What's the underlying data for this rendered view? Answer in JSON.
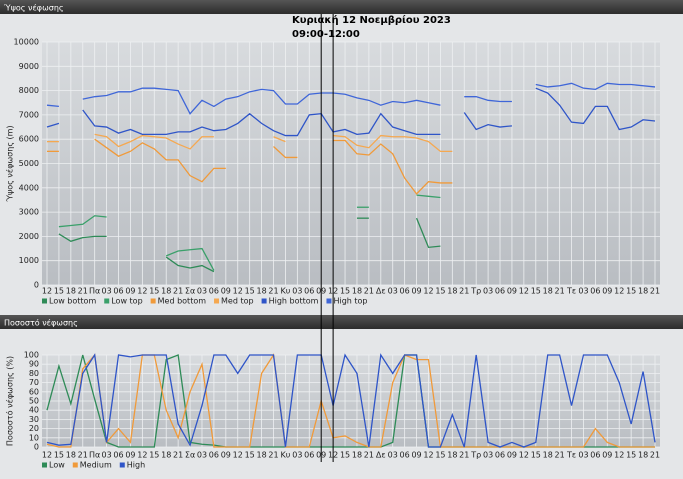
{
  "chart_data": [
    {
      "type": "line",
      "title": "Ύψος νέφωσης",
      "ylabel": "Ύψος νέφωσης (m)",
      "annotation": [
        "Κυριακή 12 Νοεμβρίου 2023",
        "09:00-12:00"
      ],
      "categories": [
        "12",
        "15",
        "18",
        "21",
        "Πα",
        "03",
        "06",
        "09",
        "12",
        "15",
        "18",
        "21",
        "Σα",
        "03",
        "06",
        "09",
        "12",
        "15",
        "18",
        "21",
        "Κυ",
        "03",
        "06",
        "09",
        "12",
        "15",
        "18",
        "21",
        "Δε",
        "03",
        "06",
        "09",
        "12",
        "15",
        "18",
        "21",
        "Τρ",
        "03",
        "06",
        "09",
        "12",
        "15",
        "18",
        "21",
        "Τε",
        "03",
        "06",
        "09",
        "12",
        "15",
        "18",
        "21"
      ],
      "ylim": [
        0,
        10000
      ],
      "yticks": [
        0,
        1000,
        2000,
        3000,
        4000,
        5000,
        6000,
        7000,
        8000,
        9000,
        10000
      ],
      "grid": true,
      "series": [
        {
          "name": "Low bottom",
          "color": "#2e8b57",
          "values": [
            null,
            2100,
            1800,
            1950,
            2000,
            2000,
            null,
            null,
            null,
            null,
            1150,
            800,
            700,
            800,
            550,
            null,
            null,
            null,
            null,
            null,
            null,
            null,
            null,
            null,
            null,
            null,
            2750,
            2750,
            null,
            null,
            null,
            2750,
            1550,
            1600,
            null,
            null,
            null,
            null,
            null,
            null,
            null,
            null,
            null,
            null,
            null,
            null,
            null,
            null,
            null,
            null,
            null,
            null
          ]
        },
        {
          "name": "Low top",
          "color": "#3aa06a",
          "values": [
            null,
            2400,
            2450,
            2500,
            2850,
            2800,
            null,
            null,
            null,
            null,
            1200,
            1400,
            1450,
            1500,
            600,
            null,
            null,
            null,
            null,
            null,
            null,
            null,
            null,
            null,
            null,
            null,
            3200,
            3200,
            null,
            null,
            null,
            3700,
            3650,
            3600,
            null,
            null,
            null,
            null,
            null,
            null,
            null,
            null,
            null,
            null,
            null,
            null,
            null,
            null,
            null,
            null,
            null,
            null
          ]
        },
        {
          "name": "Med bottom",
          "color": "#f09a3a",
          "values": [
            5500,
            5500,
            null,
            null,
            6000,
            5650,
            5300,
            5500,
            5850,
            5600,
            5150,
            5150,
            4500,
            4250,
            4800,
            4800,
            null,
            null,
            null,
            5700,
            5250,
            5250,
            null,
            null,
            5950,
            5950,
            5400,
            5350,
            5800,
            5400,
            4400,
            3750,
            4250,
            4200,
            4200,
            null,
            null,
            null,
            null,
            null,
            null,
            null,
            null,
            null,
            null,
            null,
            null,
            null,
            null,
            null,
            null,
            null
          ]
        },
        {
          "name": "Med top",
          "color": "#f5a850",
          "values": [
            5900,
            5900,
            null,
            null,
            6200,
            6100,
            5700,
            5900,
            6150,
            6100,
            6050,
            5800,
            5600,
            6100,
            6100,
            null,
            null,
            null,
            null,
            6100,
            5900,
            null,
            null,
            null,
            6150,
            6100,
            5750,
            5650,
            6150,
            6100,
            6100,
            6050,
            5900,
            5500,
            5500,
            null,
            null,
            null,
            null,
            null,
            null,
            null,
            null,
            null,
            null,
            null,
            null,
            null,
            null,
            null,
            null,
            null
          ]
        },
        {
          "name": "High bottom",
          "color": "#2f55c8",
          "values": [
            6500,
            6650,
            null,
            7200,
            6550,
            6500,
            6250,
            6400,
            6200,
            6200,
            6200,
            6300,
            6300,
            6500,
            6350,
            6400,
            6650,
            7050,
            6650,
            6350,
            6150,
            6150,
            7000,
            7050,
            6300,
            6400,
            6200,
            6250,
            7050,
            6500,
            6350,
            6200,
            6200,
            6200,
            null,
            7100,
            6400,
            6600,
            6500,
            6550,
            null,
            8100,
            7900,
            7400,
            6700,
            6650,
            7350,
            7350,
            6400,
            6500,
            6800,
            6750
          ]
        },
        {
          "name": "High top",
          "color": "#3f66d8",
          "values": [
            7400,
            7350,
            null,
            7650,
            7750,
            7800,
            7950,
            7950,
            8100,
            8100,
            8050,
            8000,
            7050,
            7600,
            7350,
            7650,
            7750,
            7950,
            8050,
            8000,
            7450,
            7450,
            7850,
            7900,
            7900,
            7850,
            7700,
            7600,
            7400,
            7550,
            7500,
            7600,
            7500,
            7400,
            null,
            7750,
            7750,
            7600,
            7550,
            7550,
            null,
            8250,
            8150,
            8200,
            8300,
            8100,
            8050,
            8300,
            8250,
            8250,
            8200,
            8150
          ]
        }
      ]
    },
    {
      "type": "line",
      "title": "Ποσοστό νέφωσης",
      "ylabel": "Ποσοστό νέφωσης (%)",
      "categories": [
        "12",
        "15",
        "18",
        "21",
        "Πα",
        "03",
        "06",
        "09",
        "12",
        "15",
        "18",
        "21",
        "Σα",
        "03",
        "06",
        "09",
        "12",
        "15",
        "18",
        "21",
        "Κυ",
        "03",
        "06",
        "09",
        "12",
        "15",
        "18",
        "21",
        "Δε",
        "03",
        "06",
        "09",
        "12",
        "15",
        "18",
        "21",
        "Τρ",
        "03",
        "06",
        "09",
        "12",
        "15",
        "18",
        "21",
        "Τε",
        "03",
        "06",
        "09",
        "12",
        "15",
        "18",
        "21"
      ],
      "ylim": [
        0,
        100
      ],
      "yticks": [
        0,
        10,
        20,
        30,
        40,
        50,
        60,
        70,
        80,
        90,
        100
      ],
      "grid": true,
      "series": [
        {
          "name": "Low",
          "color": "#2e8b57",
          "values": [
            40,
            88,
            47,
            100,
            52,
            5,
            0,
            0,
            0,
            0,
            95,
            100,
            5,
            3,
            2,
            0,
            0,
            0,
            0,
            0,
            0,
            0,
            0,
            0,
            0,
            0,
            0,
            0,
            0,
            5,
            100,
            100,
            0,
            0,
            0,
            0,
            0,
            0,
            0,
            0,
            0,
            0,
            0,
            0,
            0,
            0,
            0,
            0,
            0,
            0,
            0,
            0
          ]
        },
        {
          "name": "Medium",
          "color": "#f09a3a",
          "values": [
            3,
            0,
            0,
            85,
            100,
            5,
            20,
            5,
            100,
            100,
            40,
            10,
            60,
            90,
            0,
            0,
            0,
            0,
            80,
            100,
            0,
            0,
            0,
            50,
            10,
            12,
            5,
            0,
            0,
            70,
            100,
            95,
            95,
            0,
            0,
            0,
            0,
            0,
            0,
            0,
            0,
            0,
            0,
            0,
            0,
            0,
            20,
            5,
            0,
            0,
            0,
            0
          ]
        },
        {
          "name": "High",
          "color": "#2f55c8",
          "values": [
            5,
            2,
            3,
            80,
            100,
            5,
            100,
            98,
            100,
            100,
            100,
            25,
            2,
            45,
            100,
            100,
            80,
            100,
            100,
            100,
            0,
            100,
            100,
            100,
            45,
            100,
            80,
            0,
            100,
            80,
            100,
            100,
            0,
            0,
            35,
            0,
            100,
            5,
            0,
            5,
            0,
            5,
            100,
            100,
            45,
            100,
            100,
            100,
            70,
            25,
            82,
            5
          ]
        }
      ]
    }
  ]
}
